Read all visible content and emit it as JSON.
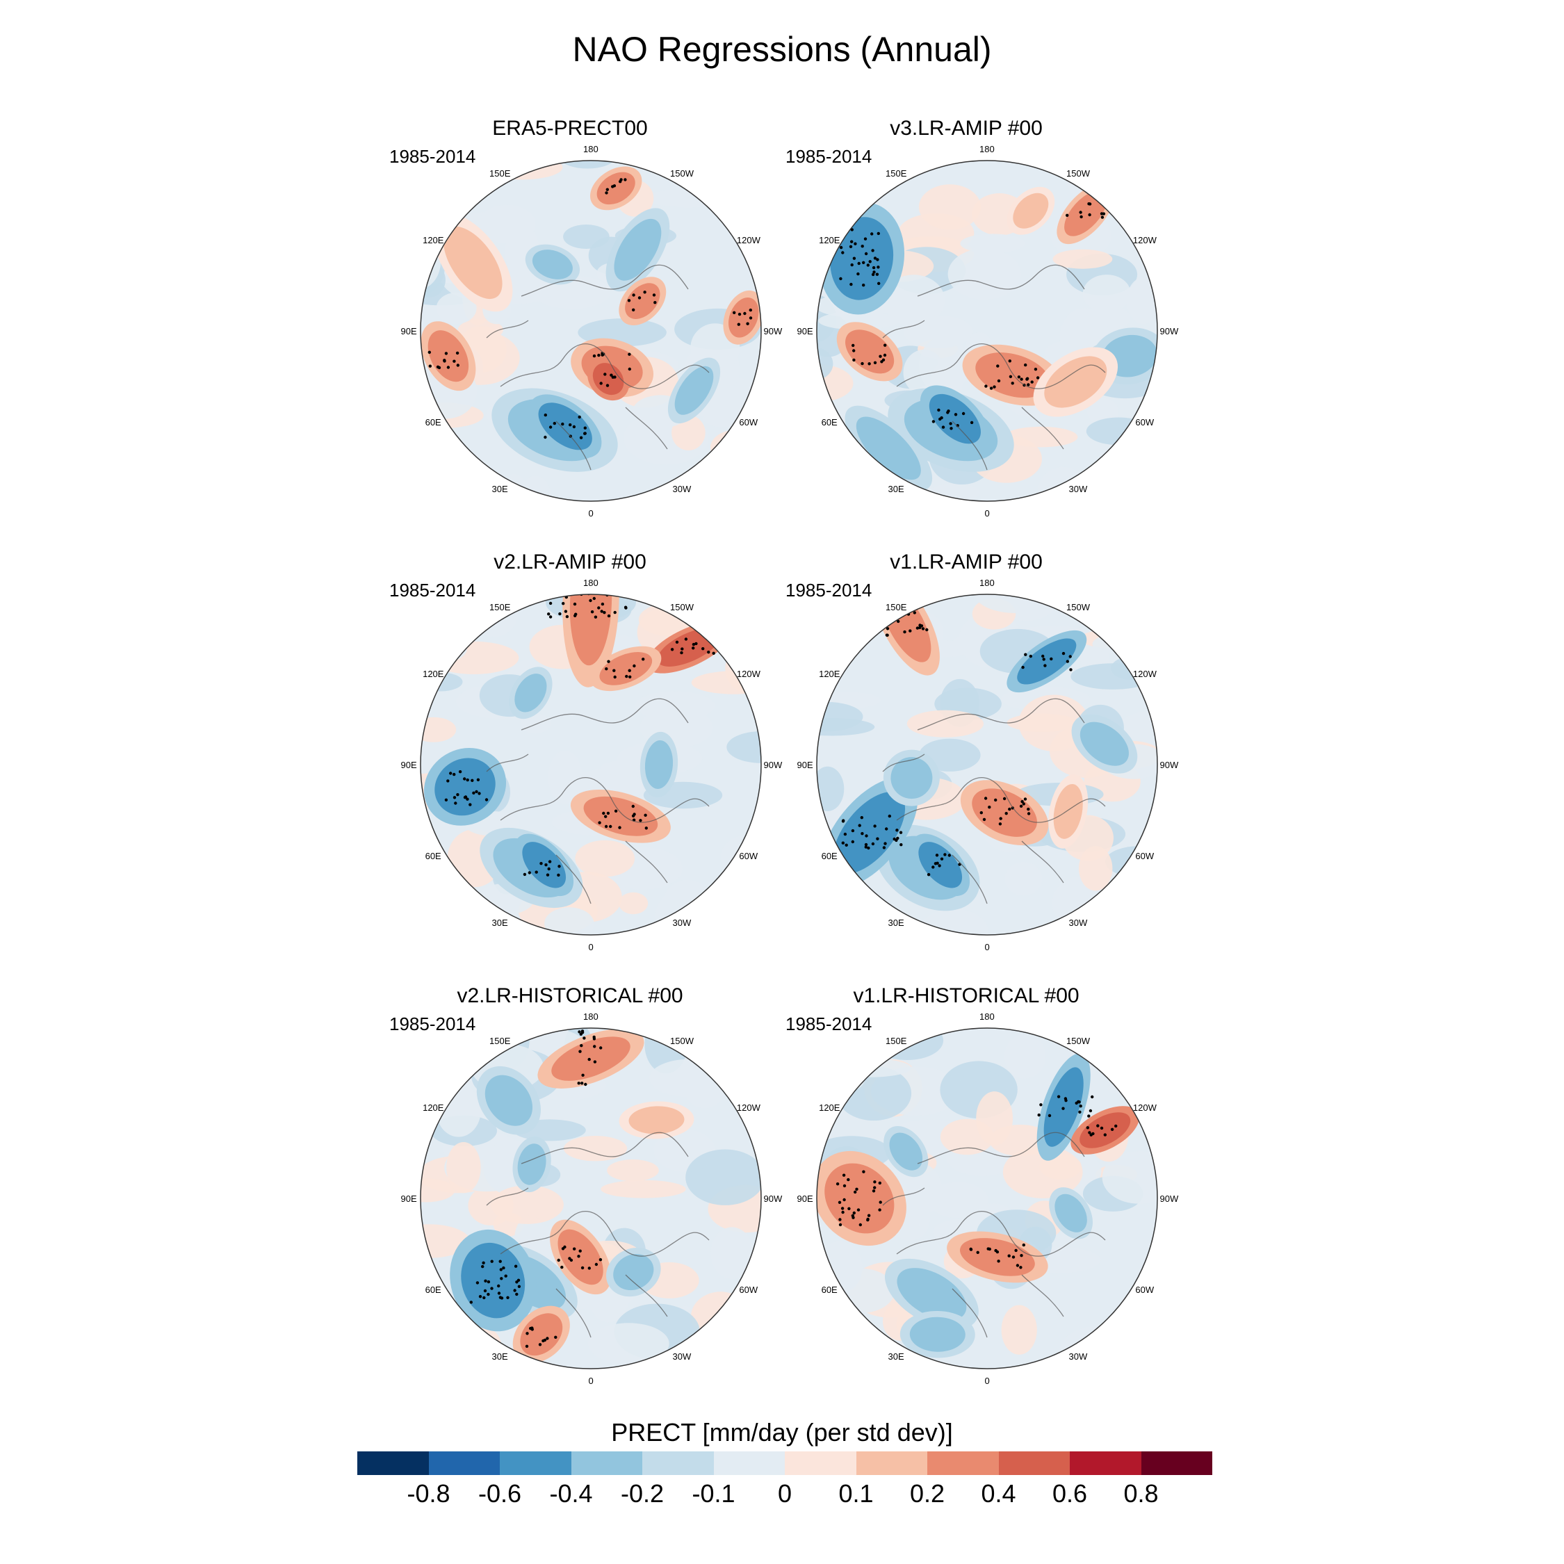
{
  "title": "NAO Regressions (Annual)",
  "period_label": "1985-2014",
  "longitude_labels": [
    "180",
    "150E",
    "120E",
    "90E",
    "60E",
    "30E",
    "0",
    "30W",
    "60W",
    "90W",
    "120W",
    "150W"
  ],
  "panels": [
    {
      "title": "ERA5-PRECT00"
    },
    {
      "title": "v3.LR-AMIP  #00"
    },
    {
      "title": "v2.LR-AMIP  #00"
    },
    {
      "title": "v1.LR-AMIP  #00"
    },
    {
      "title": "v2.LR-HISTORICAL  #00"
    },
    {
      "title": "v1.LR-HISTORICAL  #00"
    }
  ],
  "colorbar": {
    "title": "PRECT [mm/day (per std dev)]",
    "colors": [
      "#053061",
      "#2166ac",
      "#4393c3",
      "#92c5de",
      "#c3dcea",
      "#e3ecf3",
      "#fbe5dc",
      "#f6c0a6",
      "#e98a6f",
      "#d6604d",
      "#b2182b",
      "#67001f"
    ],
    "ticks": [
      "-0.8",
      "-0.6",
      "-0.4",
      "-0.2",
      "-0.1",
      "0",
      "0.1",
      "0.2",
      "0.4",
      "0.6",
      "0.8"
    ]
  }
}
